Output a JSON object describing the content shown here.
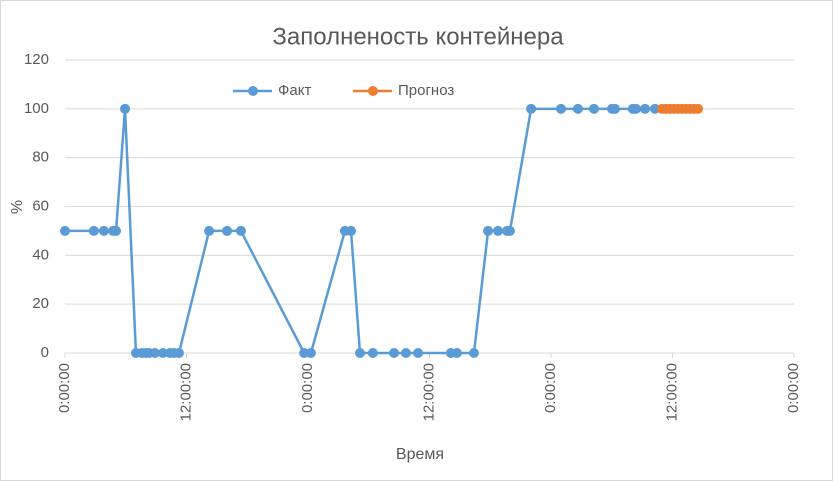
{
  "chart_data": {
    "type": "line",
    "title": "Заполненость контейнера",
    "x_label": "Время",
    "y_label": "%",
    "series": [
      {
        "name": "Факт",
        "color": "#5b9bd5",
        "x": [
          0,
          0.119,
          0.16,
          0.198,
          0.21,
          0.247,
          0.292,
          0.317,
          0.333,
          0.346,
          0.37,
          0.403,
          0.432,
          0.449,
          0.469,
          0.593,
          0.667,
          0.724,
          0.984,
          1.012,
          1.152,
          1.177,
          1.214,
          1.267,
          1.354,
          1.403,
          1.453,
          1.588,
          1.613,
          1.683,
          1.741,
          1.782,
          1.819,
          1.831,
          1.918,
          2.041,
          2.111,
          2.177,
          2.251,
          2.263,
          2.337,
          2.35,
          2.387,
          2.428
        ],
        "values": [
          50,
          50,
          50,
          50,
          50,
          100,
          0,
          0,
          0,
          0,
          0,
          0,
          0,
          0,
          0,
          50,
          50,
          50,
          0,
          0,
          50,
          50,
          0,
          0,
          0,
          0,
          0,
          0,
          0,
          0,
          50,
          50,
          50,
          50,
          100,
          100,
          100,
          100,
          100,
          100,
          100,
          100,
          100,
          100
        ]
      },
      {
        "name": "Прогноз",
        "color": "#ed7d31",
        "x": [
          2.457,
          2.473,
          2.49,
          2.506,
          2.523,
          2.539,
          2.556,
          2.572,
          2.588,
          2.605
        ],
        "values": [
          100,
          100,
          100,
          100,
          100,
          100,
          100,
          100,
          100,
          100
        ]
      }
    ],
    "xlim": [
      0,
      3
    ],
    "xticks": [
      {
        "value": 0,
        "label": "0:00:00"
      },
      {
        "value": 0.5,
        "label": "12:00:00"
      },
      {
        "value": 1,
        "label": "0:00:00"
      },
      {
        "value": 1.5,
        "label": "12:00:00"
      },
      {
        "value": 2,
        "label": "0:00:00"
      },
      {
        "value": 2.5,
        "label": "12:00:00"
      },
      {
        "value": 3,
        "label": "0:00:00"
      }
    ],
    "ylim": [
      0,
      120
    ],
    "yticks": [
      0,
      20,
      40,
      60,
      80,
      100,
      120
    ],
    "grid": true,
    "legend": "top"
  }
}
